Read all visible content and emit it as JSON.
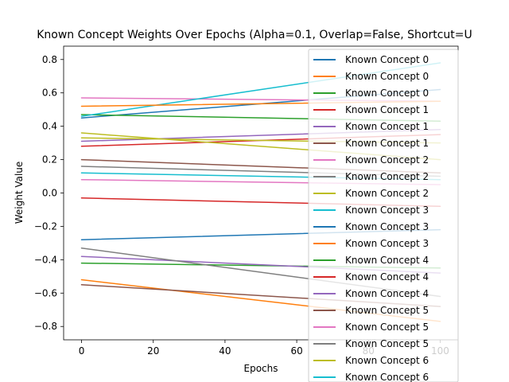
{
  "chart_data": {
    "type": "line",
    "title": "Known Concept Weights Over Epochs (Alpha=0.1, Overlap=False, Shortcut=U",
    "xlabel": "Epochs",
    "ylabel": "Weight Value",
    "xlim": [
      -5,
      105
    ],
    "ylim": [
      -0.88,
      0.88
    ],
    "xticks": [
      0,
      20,
      40,
      60,
      80,
      100
    ],
    "yticks": [
      -0.8,
      -0.6,
      -0.4,
      -0.2,
      0.0,
      0.2,
      0.4,
      0.6,
      0.8
    ],
    "xtick_labels": [
      "0",
      "20",
      "40",
      "60",
      "80",
      "100"
    ],
    "ytick_labels": [
      "−0.8",
      "−0.6",
      "−0.4",
      "−0.2",
      "0.0",
      "0.2",
      "0.4",
      "0.6",
      "0.8"
    ],
    "grid": false,
    "legend_position": "upper right",
    "x": [
      0,
      100
    ],
    "series": [
      {
        "name": "Known Concept 0",
        "color": "#1f77b4",
        "values": [
          0.45,
          0.62
        ]
      },
      {
        "name": "Known Concept 0",
        "color": "#ff7f0e",
        "values": [
          -0.52,
          -0.77
        ]
      },
      {
        "name": "Known Concept 0",
        "color": "#2ca02c",
        "values": [
          0.47,
          0.43
        ]
      },
      {
        "name": "Known Concept 1",
        "color": "#d62728",
        "values": [
          0.28,
          0.35
        ]
      },
      {
        "name": "Known Concept 1",
        "color": "#9467bd",
        "values": [
          0.31,
          0.38
        ]
      },
      {
        "name": "Known Concept 1",
        "color": "#8c564b",
        "values": [
          0.2,
          0.12
        ]
      },
      {
        "name": "Known Concept 2",
        "color": "#e377c2",
        "values": [
          0.57,
          0.55
        ]
      },
      {
        "name": "Known Concept 2",
        "color": "#7f7f7f",
        "values": [
          0.16,
          0.1
        ]
      },
      {
        "name": "Known Concept 2",
        "color": "#bcbd22",
        "values": [
          0.36,
          0.2
        ]
      },
      {
        "name": "Known Concept 3",
        "color": "#17becf",
        "values": [
          0.46,
          0.78
        ]
      },
      {
        "name": "Known Concept 3",
        "color": "#1f77b4",
        "values": [
          -0.28,
          -0.22
        ]
      },
      {
        "name": "Known Concept 3",
        "color": "#ff7f0e",
        "values": [
          0.52,
          0.55
        ]
      },
      {
        "name": "Known Concept 4",
        "color": "#2ca02c",
        "values": [
          -0.42,
          -0.45
        ]
      },
      {
        "name": "Known Concept 4",
        "color": "#d62728",
        "values": [
          -0.03,
          -0.08
        ]
      },
      {
        "name": "Known Concept 4",
        "color": "#9467bd",
        "values": [
          -0.38,
          -0.48
        ]
      },
      {
        "name": "Known Concept 5",
        "color": "#8c564b",
        "values": [
          -0.55,
          -0.68
        ]
      },
      {
        "name": "Known Concept 5",
        "color": "#e377c2",
        "values": [
          0.08,
          0.05
        ]
      },
      {
        "name": "Known Concept 5",
        "color": "#7f7f7f",
        "values": [
          -0.33,
          -0.62
        ]
      },
      {
        "name": "Known Concept 6",
        "color": "#bcbd22",
        "values": [
          0.33,
          0.3
        ]
      },
      {
        "name": "Known Concept 6",
        "color": "#17becf",
        "values": [
          0.12,
          0.08
        ]
      }
    ]
  }
}
